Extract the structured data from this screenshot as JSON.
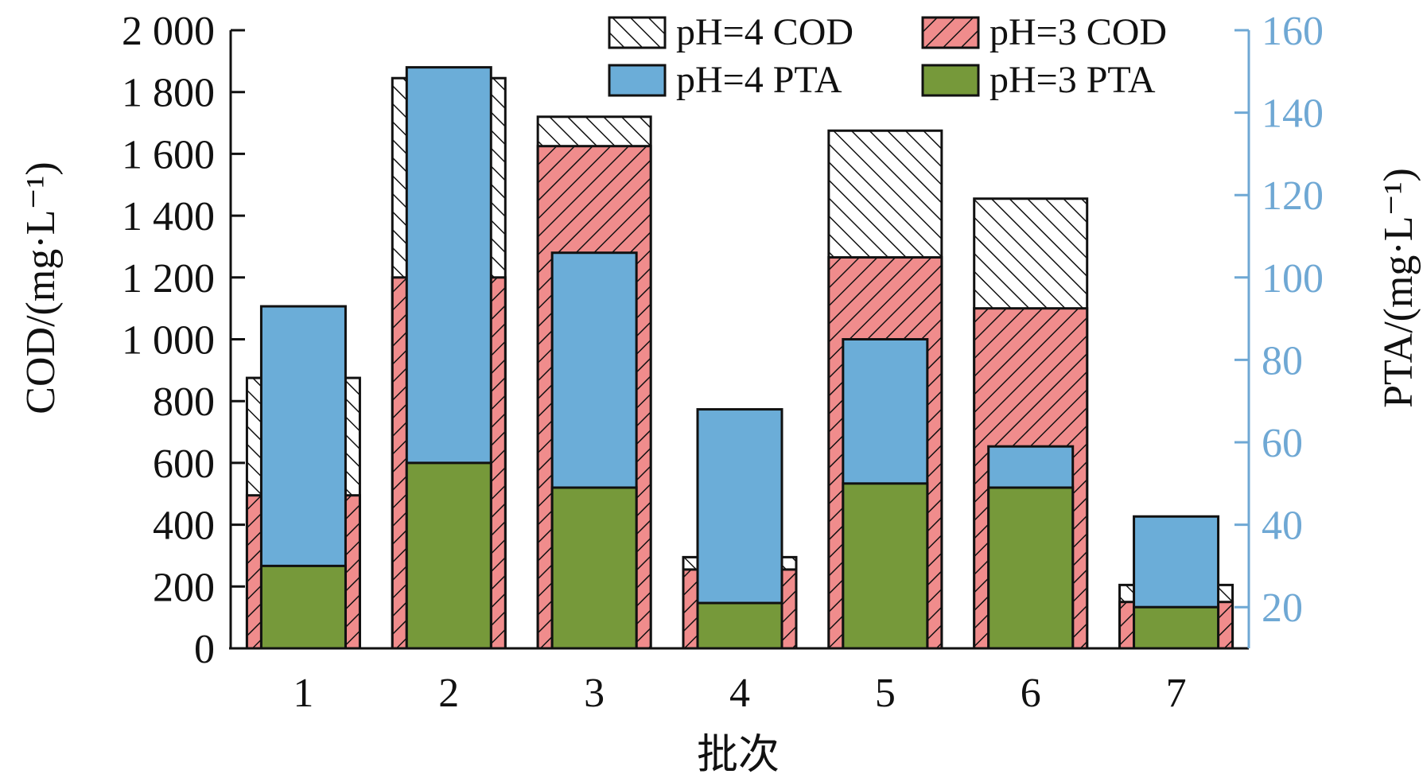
{
  "chart_data": {
    "type": "bar",
    "categories": [
      "1",
      "2",
      "3",
      "4",
      "5",
      "6",
      "7"
    ],
    "xlabel": "批次",
    "ylabel_left": "COD/(mg·L⁻¹)",
    "ylabel_right": "PTA/(mg·L⁻¹)",
    "left_axis": {
      "ylim": [
        0,
        2000
      ],
      "ticks": [
        0,
        200,
        400,
        600,
        800,
        1000,
        1200,
        1400,
        1600,
        1800,
        2000
      ],
      "tick_labels": [
        "0",
        "200",
        "400",
        "600",
        "800",
        "1 000",
        "1 200",
        "1 400",
        "1 600",
        "1 800",
        "2 000"
      ]
    },
    "right_axis": {
      "ylim": [
        10,
        160
      ],
      "ticks": [
        20,
        40,
        60,
        80,
        100,
        120,
        140,
        160
      ],
      "tick_labels": [
        "20",
        "40",
        "60",
        "80",
        "100",
        "120",
        "140",
        "160"
      ],
      "color": "#6fa8d4"
    },
    "series": [
      {
        "name": "pH=4 COD",
        "axis": "left",
        "style": "hatch-forward",
        "color": "#ffffff",
        "values": [
          875,
          1845,
          1720,
          295,
          1675,
          1455,
          205
        ]
      },
      {
        "name": "pH=3 COD",
        "axis": "left",
        "style": "hatch-back",
        "color": "#f08c8c",
        "values": [
          495,
          1200,
          1625,
          255,
          1265,
          1100,
          150
        ]
      },
      {
        "name": "pH=4 PTA",
        "axis": "right",
        "style": "solid",
        "color": "#6badd8",
        "values": [
          93,
          151,
          106,
          68,
          85,
          59,
          42
        ]
      },
      {
        "name": "pH=3 PTA",
        "axis": "right",
        "style": "solid",
        "color": "#76993a",
        "values": [
          30,
          55,
          49,
          21,
          50,
          49,
          20
        ]
      }
    ],
    "legend": {
      "position": "top-right",
      "items": [
        "pH=4 COD",
        "pH=3 COD",
        "pH=4 PTA",
        "pH=3 PTA"
      ]
    }
  }
}
